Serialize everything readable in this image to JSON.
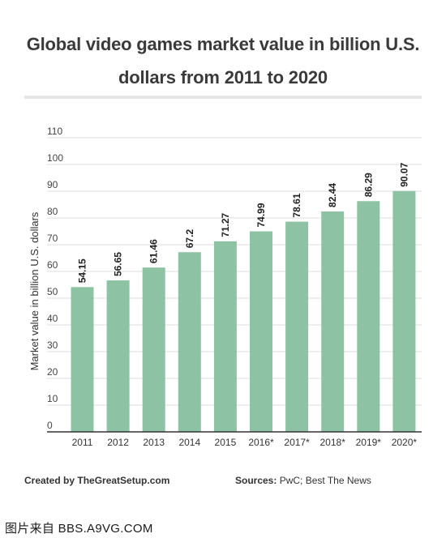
{
  "chart_data": {
    "type": "bar",
    "title": "Global video games market value in billion U.S. dollars from 2011 to 2020",
    "title_line1": "Global video games market value in billion U.S.",
    "title_line2": "dollars from 2011 to 2020",
    "xlabel": "",
    "ylabel": "Market value in billion U.S. dollars",
    "categories": [
      "2011",
      "2012",
      "2013",
      "2014",
      "2015",
      "2016*",
      "2017*",
      "2018*",
      "2019*",
      "2020*"
    ],
    "values": [
      54.15,
      56.65,
      61.46,
      67.2,
      71.27,
      74.99,
      78.61,
      82.44,
      86.29,
      90.07
    ],
    "data_labels": [
      "54.15",
      "56.65",
      "61.46",
      "67.2",
      "71.27",
      "74.99",
      "78.61",
      "82.44",
      "86.29",
      "90.07"
    ],
    "ylim": [
      0,
      110
    ],
    "yticks": [
      0,
      10,
      20,
      30,
      40,
      50,
      60,
      70,
      80,
      90,
      100,
      110
    ],
    "grid": true,
    "bar_color": "#8dc3a4"
  },
  "footer": {
    "created_by_label": "Created by",
    "created_by_value": "TheGreatSetup.com",
    "sources_label": "Sources:",
    "sources_value": "PwC; Best The News"
  },
  "watermark": "图片来自 BBS.A9VG.COM"
}
